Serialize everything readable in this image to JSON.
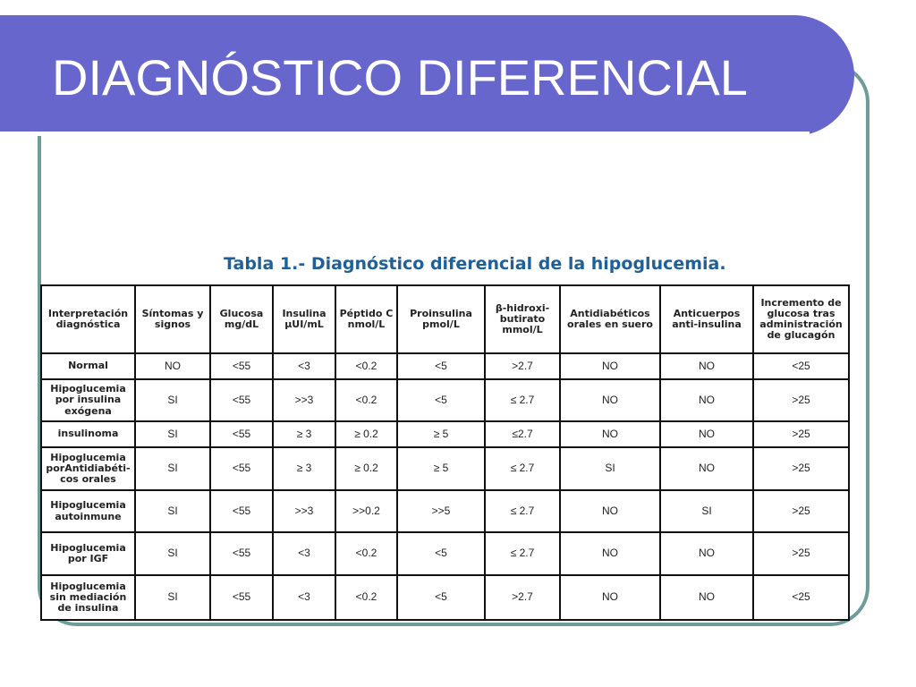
{
  "title": "DIAGNÓSTICO DIFERENCIAL",
  "caption": "Tabla 1.- Diagnóstico diferencial de la hipoglucemia.",
  "colors": {
    "title_bar": "#6666cc",
    "frame": "#6f9b9a",
    "caption": "#1f5f9a"
  },
  "table": {
    "headers": [
      "Interpretación diagnóstica",
      "Síntomas y signos",
      "Glucosa mg/dL",
      "Insulina µUI/mL",
      "Péptido C nmol/L",
      "Proinsulina pmol/L",
      "β-hidroxi-butirato mmol/L",
      "Antidiabéticos orales en suero",
      "Anticuerpos anti-insulina",
      "Incremento de glucosa tras administración de glucagón"
    ],
    "rows": [
      [
        "Normal",
        "NO",
        "<55",
        "<3",
        "<0.2",
        "<5",
        ">2.7",
        "NO",
        "NO",
        "<25"
      ],
      [
        "Hipoglucemia por insulina exógena",
        "SI",
        "<55",
        ">>3",
        "<0.2",
        "<5",
        "≤ 2.7",
        "NO",
        "NO",
        ">25"
      ],
      [
        "insulinoma",
        "SI",
        "<55",
        "≥ 3",
        "≥ 0.2",
        "≥ 5",
        "≤2.7",
        "NO",
        "NO",
        ">25"
      ],
      [
        "Hipoglucemia porAntidiabéti-cos orales",
        "SI",
        "<55",
        "≥ 3",
        "≥ 0.2",
        "≥ 5",
        "≤ 2.7",
        "SI",
        "NO",
        ">25"
      ],
      [
        "Hipoglucemia autoinmune",
        "SI",
        "<55",
        ">>3",
        ">>0.2",
        ">>5",
        "≤ 2.7",
        "NO",
        "SI",
        ">25"
      ],
      [
        "Hipoglucemia por IGF",
        "SI",
        "<55",
        "<3",
        "<0.2",
        "<5",
        "≤ 2.7",
        "NO",
        "NO",
        ">25"
      ],
      [
        "Hipoglucemia sin mediación de insulina",
        "SI",
        "<55",
        "<3",
        "<0.2",
        "<5",
        ">2.7",
        "NO",
        "NO",
        "<25"
      ]
    ]
  }
}
